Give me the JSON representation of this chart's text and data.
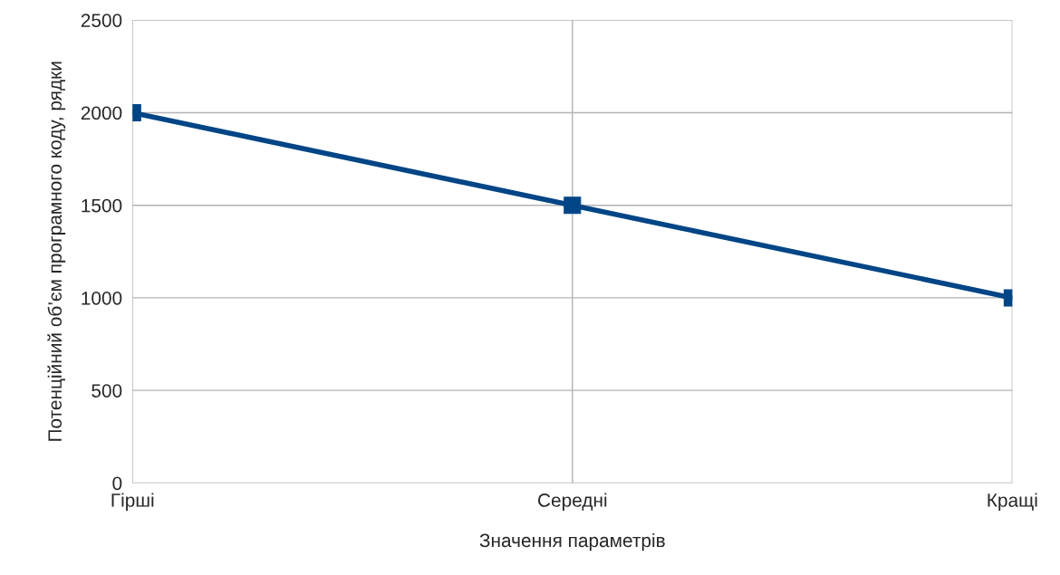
{
  "chart_data": {
    "type": "line",
    "xlabel": "Значення параметрів",
    "ylabel": "Потенційний об’єм програмного коду, рядки",
    "categories": [
      "Гірші",
      "Середні",
      "Кращі"
    ],
    "series": [
      {
        "color": "#004586",
        "values": [
          2000,
          1500,
          1000
        ]
      }
    ],
    "ylim": [
      0,
      2500
    ],
    "yticks": [
      0,
      500,
      1000,
      1500,
      2000,
      2500
    ],
    "grid": true,
    "marker": "square",
    "line_style": "solid"
  }
}
